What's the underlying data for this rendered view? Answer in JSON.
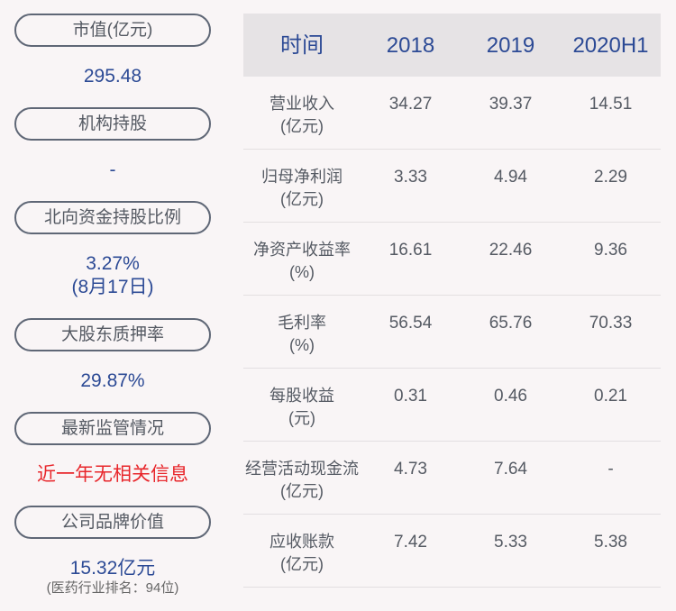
{
  "left": [
    {
      "label": "市值(亿元)",
      "value": "295.48"
    },
    {
      "label": "机构持股",
      "value": "-"
    },
    {
      "label": "北向资金持股比例",
      "value": "3.27%",
      "value2": "(8月17日)"
    },
    {
      "label": "大股东质押率",
      "value": "29.87%"
    },
    {
      "label": "最新监管情况",
      "value": "近一年无相关信息"
    },
    {
      "label": "公司品牌价值",
      "value": "15.32亿元",
      "note": "(医药行业排名：94位)"
    }
  ],
  "table": {
    "headers": [
      "时间",
      "2018",
      "2019",
      "2020H1"
    ],
    "rows": [
      {
        "name": "营业收入",
        "unit": "(亿元)",
        "values": [
          "34.27",
          "39.37",
          "14.51"
        ]
      },
      {
        "name": "归母净利润",
        "unit": "(亿元)",
        "values": [
          "3.33",
          "4.94",
          "2.29"
        ]
      },
      {
        "name": "净资产收益率",
        "unit": "(%)",
        "values": [
          "16.61",
          "22.46",
          "9.36"
        ]
      },
      {
        "name": "毛利率",
        "unit": "(%)",
        "values": [
          "56.54",
          "65.76",
          "70.33"
        ]
      },
      {
        "name": "每股收益",
        "unit": "(元)",
        "values": [
          "0.31",
          "0.46",
          "0.21"
        ]
      },
      {
        "name": "经营活动现金流",
        "unit": "(亿元)",
        "values": [
          "4.73",
          "7.64",
          "-"
        ]
      },
      {
        "name": "应收账款",
        "unit": "(亿元)",
        "values": [
          "7.42",
          "5.33",
          "5.38"
        ]
      }
    ]
  },
  "colors": {
    "value": "#2c4a95",
    "alert": "#e8262b",
    "pill_border": "#5f6776",
    "header_bg": "#e6e3e5"
  }
}
